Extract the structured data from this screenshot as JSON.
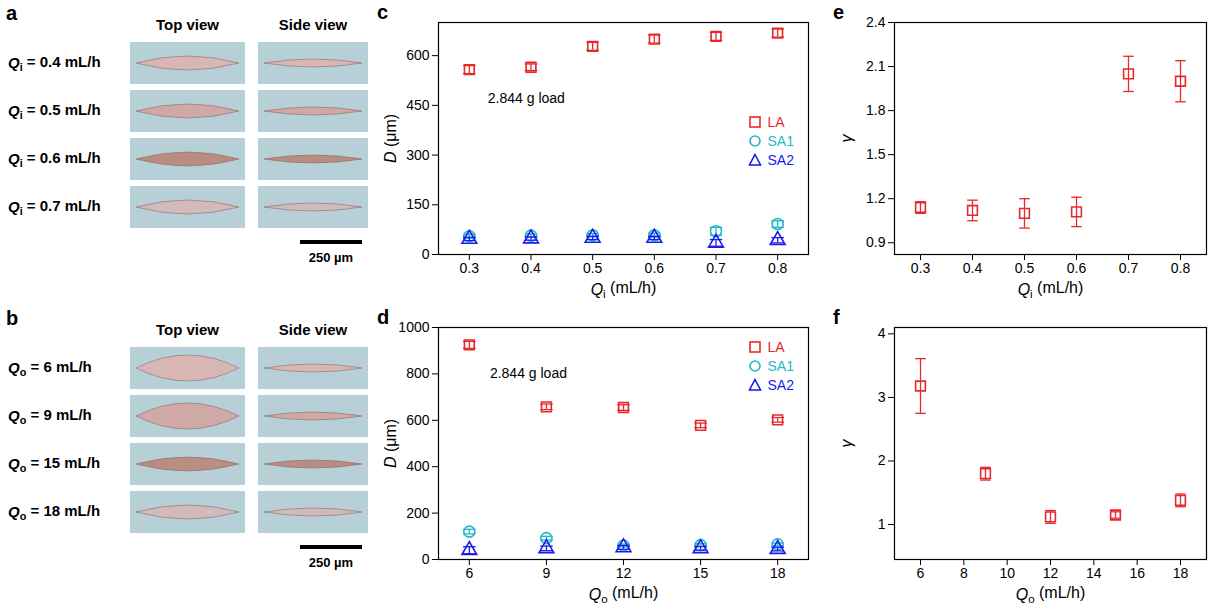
{
  "image_panels": [
    {
      "panel": "a",
      "columns": [
        "Top view",
        "Side view"
      ],
      "rows": [
        "Qi = 0.4 mL/h",
        "Qi = 0.5 mL/h",
        "Qi = 0.6 mL/h",
        "Qi = 0.7 mL/h"
      ],
      "scale_bar": "250 µm"
    },
    {
      "panel": "b",
      "columns": [
        "Top view",
        "Side view"
      ],
      "rows": [
        "Qo = 6 mL/h",
        "Qo = 9 mL/h",
        "Qo = 15 mL/h",
        "Qo = 18 mL/h"
      ],
      "scale_bar": "250 µm"
    }
  ],
  "chart_data": [
    {
      "panel": "c",
      "type": "scatter",
      "x_label": "Qi (mL/h)",
      "y_label": "D (μm)",
      "x": [
        0.3,
        0.4,
        0.5,
        0.6,
        0.7,
        0.8
      ],
      "xlim": [
        0.25,
        0.85
      ],
      "xticks": [
        0.3,
        0.4,
        0.5,
        0.6,
        0.7,
        0.8
      ],
      "ylim": [
        0,
        700
      ],
      "yticks": [
        0,
        150,
        300,
        450,
        600
      ],
      "annotations": [
        {
          "text": "2.844 g load",
          "x": 0.33,
          "y": 470
        }
      ],
      "legend": "right",
      "series": [
        {
          "name": "LA",
          "color": "#e8282b",
          "marker": "square",
          "values": [
            558,
            565,
            628,
            650,
            658,
            668
          ],
          "errors": [
            12,
            10,
            12,
            12,
            12,
            12
          ]
        },
        {
          "name": "SA1",
          "color": "#1fb8c8",
          "marker": "circle",
          "values": [
            55,
            57,
            58,
            58,
            70,
            92
          ],
          "errors": [
            6,
            5,
            5,
            6,
            12,
            10
          ]
        },
        {
          "name": "SA2",
          "color": "#1a1aee",
          "marker": "triangle",
          "values": [
            47,
            48,
            50,
            50,
            35,
            43
          ],
          "errors": [
            5,
            5,
            5,
            5,
            10,
            8
          ]
        }
      ]
    },
    {
      "panel": "d",
      "type": "scatter",
      "x_label": "Qo (mL/h)",
      "y_label": "D (μm)",
      "x": [
        6,
        9,
        12,
        15,
        18
      ],
      "xlim": [
        4.8,
        19.2
      ],
      "xticks": [
        6,
        9,
        12,
        15,
        18
      ],
      "ylim": [
        0,
        1000
      ],
      "yticks": [
        0,
        200,
        400,
        600,
        800,
        1000
      ],
      "annotations": [
        {
          "text": "2.844 g load",
          "x": 6.8,
          "y": 800
        }
      ],
      "legend": "top-right",
      "series": [
        {
          "name": "LA",
          "color": "#e8282b",
          "marker": "square",
          "values": [
            925,
            658,
            655,
            578,
            602
          ],
          "errors": [
            15,
            12,
            12,
            10,
            10
          ]
        },
        {
          "name": "SA1",
          "color": "#1fb8c8",
          "marker": "circle",
          "values": [
            120,
            92,
            60,
            62,
            65
          ],
          "errors": [
            10,
            8,
            6,
            6,
            6
          ]
        },
        {
          "name": "SA2",
          "color": "#1a1aee",
          "marker": "triangle",
          "values": [
            40,
            48,
            52,
            48,
            45
          ],
          "errors": [
            15,
            10,
            8,
            8,
            8
          ]
        }
      ]
    },
    {
      "panel": "e",
      "type": "scatter",
      "x_label": "Qi (mL/h)",
      "y_label": "γ",
      "x": [
        0.3,
        0.4,
        0.5,
        0.6,
        0.7,
        0.8
      ],
      "xlim": [
        0.25,
        0.85
      ],
      "xticks": [
        0.3,
        0.4,
        0.5,
        0.6,
        0.7,
        0.8
      ],
      "ylim": [
        0.82,
        2.4
      ],
      "yticks": [
        0.9,
        1.2,
        1.5,
        1.8,
        2.1,
        2.4
      ],
      "series": [
        {
          "color": "#e8282b",
          "marker": "square",
          "values": [
            1.14,
            1.12,
            1.1,
            1.11,
            2.05,
            2.0
          ],
          "errors": [
            0.04,
            0.07,
            0.1,
            0.1,
            0.12,
            0.14
          ]
        }
      ]
    },
    {
      "panel": "f",
      "type": "scatter",
      "x_label": "Qo (mL/h)",
      "y_label": "γ",
      "x": [
        6,
        9,
        12,
        15,
        18
      ],
      "xlim": [
        4.8,
        19.2
      ],
      "xticks": [
        6,
        8,
        10,
        12,
        14,
        16,
        18
      ],
      "ylim": [
        0.45,
        4.1
      ],
      "yticks": [
        1,
        2,
        3,
        4
      ],
      "series": [
        {
          "color": "#e8282b",
          "marker": "square",
          "values": [
            3.18,
            1.8,
            1.12,
            1.15,
            1.38
          ],
          "errors": [
            0.43,
            0.1,
            0.1,
            0.05,
            0.1
          ]
        }
      ]
    }
  ]
}
